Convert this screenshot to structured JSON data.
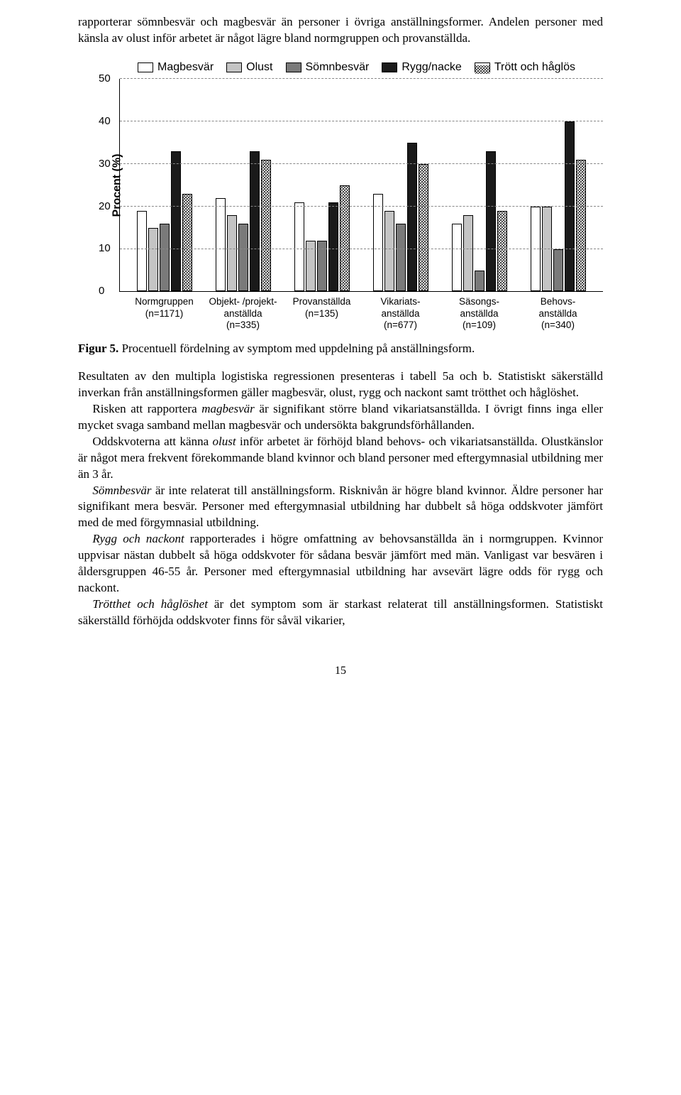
{
  "intro": "rapporterar sömnbesvär och magbesvär än personer i övriga anställningsformer. Andelen personer med känsla av olust inför arbetet är något lägre bland normgruppen och provanställda.",
  "chart": {
    "type": "bar",
    "legend": [
      "Magbesvär",
      "Olust",
      "Sömnbesvär",
      "Rygg/nacke",
      "Trött och håglös"
    ],
    "legend_fills": [
      "#ffffff",
      "#c4c4c4",
      "#7a7a7a",
      "#1a1a1a",
      "pattern"
    ],
    "ylabel": "Procent (%)",
    "ylim": [
      0,
      50
    ],
    "ytick_step": 10,
    "grid_color": "#888888",
    "background_color": "#ffffff",
    "categories": [
      "Normgruppen (n=1171)",
      "Objekt- /projekt-anställda (n=335)",
      "Provanställda (n=135)",
      "Vikariats-anställda (n=677)",
      "Säsongs-anställda (n=109)",
      "Behovs-anställda (n=340)"
    ],
    "series": [
      [
        19,
        15,
        16,
        33,
        23
      ],
      [
        22,
        18,
        16,
        33,
        31
      ],
      [
        21,
        12,
        12,
        21,
        25
      ],
      [
        23,
        19,
        16,
        35,
        30
      ],
      [
        16,
        18,
        5,
        33,
        19
      ],
      [
        20,
        20,
        10,
        40,
        31
      ]
    ],
    "bar_colors": [
      "#ffffff",
      "#c4c4c4",
      "#7a7a7a",
      "#1a1a1a",
      "pattern"
    ],
    "bar_border": "#000000"
  },
  "caption_bold": "Figur 5.",
  "caption_rest": " Procentuell fördelning av symptom med uppdelning på anställningsform.",
  "body": [
    {
      "indent": false,
      "html": "Resultaten av den multipla logistiska regressionen presenteras i tabell 5a och b. Statistiskt säkerställd inverkan från anställningsformen gäller magbesvär, olust, rygg och nackont samt trötthet och håglöshet."
    },
    {
      "indent": true,
      "html": "Risken att rapportera <em>magbesvär</em> är signifikant större bland vikariatsanställda. I övrigt finns inga eller mycket svaga samband mellan magbesvär och undersökta bakgrundsförhållanden."
    },
    {
      "indent": true,
      "html": "Oddskvoterna att känna <em>olust</em> inför arbetet är förhöjd bland behovs- och vikariatsanställda. Olustkänslor är något mera frekvent förekommande bland kvinnor och bland personer med eftergymnasial utbildning mer än 3 år."
    },
    {
      "indent": true,
      "html": "<em>Sömnbesvär</em> är inte relaterat till anställningsform. Risknivån är högre bland kvinnor. Äldre personer har signifikant mera besvär. Personer med eftergymnasial utbildning har dubbelt så höga oddskvoter jämfört med de med förgymnasial utbildning."
    },
    {
      "indent": true,
      "html": "<em>Rygg och nackont</em> rapporterades i högre omfattning av behovsanställda än i normgruppen. Kvinnor uppvisar nästan dubbelt så höga oddskvoter för sådana besvär jämfört med män. Vanligast var besvären i åldersgruppen 46-55 år. Personer med eftergymnasial utbildning har avsevärt lägre odds för rygg och nackont."
    },
    {
      "indent": true,
      "html": "<em>Trötthet och håglöshet</em> är det symptom som är starkast relaterat till anställningsformen. Statistiskt säkerställd förhöjda oddskvoter finns för såväl vikarier,"
    }
  ],
  "pagenum": "15"
}
